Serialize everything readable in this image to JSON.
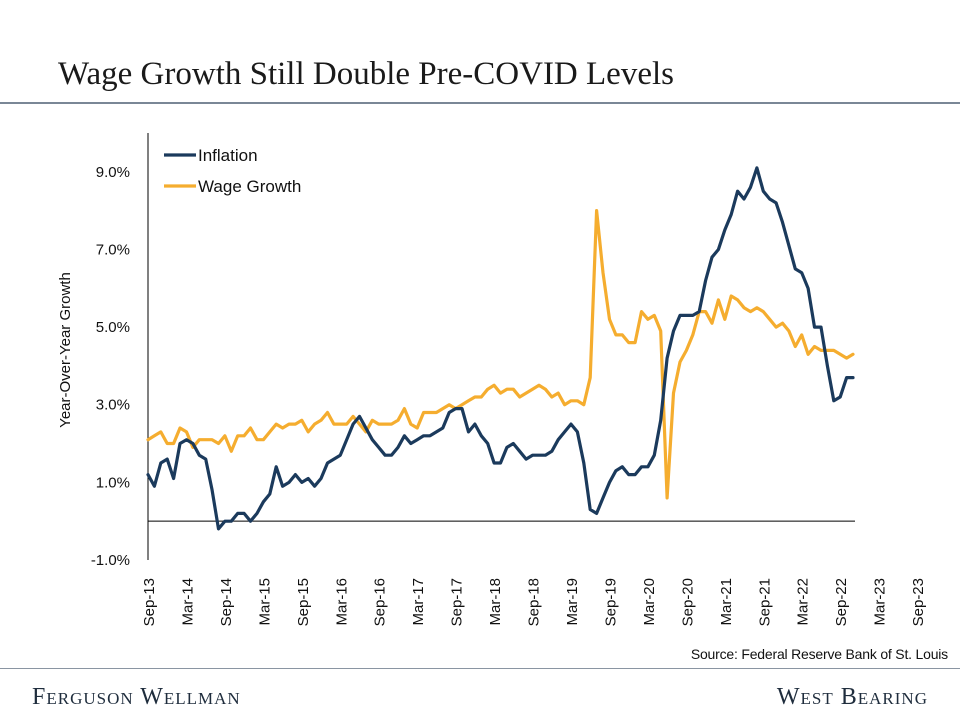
{
  "header": {
    "title": "Wage Growth Still Double Pre-COVID Levels"
  },
  "footer": {
    "source": "Source: Federal Reserve Bank of St. Louis",
    "brand_left": "Ferguson Wellman",
    "brand_right": "West Bearing"
  },
  "chart_data": {
    "type": "line",
    "title": "",
    "xlabel": "",
    "ylabel": "Year-Over-Year Growth",
    "x_tick_labels": [
      "Sep-13",
      "Mar-14",
      "Sep-14",
      "Mar-15",
      "Sep-15",
      "Mar-16",
      "Sep-16",
      "Mar-17",
      "Sep-17",
      "Mar-18",
      "Sep-18",
      "Mar-19",
      "Sep-19",
      "Mar-20",
      "Sep-20",
      "Mar-21",
      "Sep-21",
      "Mar-22",
      "Sep-22",
      "Mar-23",
      "Sep-23"
    ],
    "y_tick_labels": [
      "9.0%",
      "7.0%",
      "5.0%",
      "3.0%",
      "1.0%",
      "-1.0%"
    ],
    "y_ticks": [
      9,
      7,
      5,
      3,
      1,
      -1
    ],
    "ylim": [
      -1,
      10
    ],
    "legend_position": "top-left",
    "grid": false,
    "series": [
      {
        "name": "Inflation",
        "color": "#1b3a5c",
        "values": [
          1.2,
          0.9,
          1.5,
          1.6,
          1.1,
          2.0,
          2.1,
          2.0,
          1.7,
          1.6,
          0.8,
          -0.2,
          0.0,
          0.0,
          0.2,
          0.2,
          0.0,
          0.2,
          0.5,
          0.7,
          1.4,
          0.9,
          1.0,
          1.2,
          1.0,
          1.1,
          0.9,
          1.1,
          1.5,
          1.6,
          1.7,
          2.1,
          2.5,
          2.7,
          2.4,
          2.1,
          1.9,
          1.7,
          1.7,
          1.9,
          2.2,
          2.0,
          2.1,
          2.2,
          2.2,
          2.3,
          2.4,
          2.8,
          2.9,
          2.9,
          2.3,
          2.5,
          2.2,
          2.0,
          1.5,
          1.5,
          1.9,
          2.0,
          1.8,
          1.6,
          1.7,
          1.7,
          1.7,
          1.8,
          2.1,
          2.3,
          2.5,
          2.3,
          1.5,
          0.3,
          0.2,
          0.6,
          1.0,
          1.3,
          1.4,
          1.2,
          1.2,
          1.4,
          1.4,
          1.7,
          2.6,
          4.2,
          4.9,
          5.3,
          5.3,
          5.3,
          5.4,
          6.2,
          6.8,
          7.0,
          7.5,
          7.9,
          8.5,
          8.3,
          8.6,
          9.1,
          8.5,
          8.3,
          8.2,
          7.7,
          7.1,
          6.5,
          6.4,
          6.0,
          5.0,
          5.0,
          4.0,
          3.1,
          3.2,
          3.7,
          3.7
        ]
      },
      {
        "name": "Wage Growth",
        "color": "#f5ad2f",
        "values": [
          2.1,
          2.2,
          2.3,
          2.0,
          2.0,
          2.4,
          2.3,
          1.9,
          2.1,
          2.1,
          2.1,
          2.0,
          2.2,
          1.8,
          2.2,
          2.2,
          2.4,
          2.1,
          2.1,
          2.3,
          2.5,
          2.4,
          2.5,
          2.5,
          2.6,
          2.3,
          2.5,
          2.6,
          2.8,
          2.5,
          2.5,
          2.5,
          2.7,
          2.5,
          2.3,
          2.6,
          2.5,
          2.5,
          2.5,
          2.6,
          2.9,
          2.5,
          2.4,
          2.8,
          2.8,
          2.8,
          2.9,
          3.0,
          2.9,
          3.0,
          3.1,
          3.2,
          3.2,
          3.4,
          3.5,
          3.3,
          3.4,
          3.4,
          3.2,
          3.3,
          3.4,
          3.5,
          3.4,
          3.2,
          3.3,
          3.0,
          3.1,
          3.1,
          3.0,
          3.7,
          8.0,
          6.4,
          5.2,
          4.8,
          4.8,
          4.6,
          4.6,
          5.4,
          5.2,
          5.3,
          4.9,
          0.6,
          3.3,
          4.1,
          4.4,
          4.8,
          5.4,
          5.4,
          5.1,
          5.7,
          5.2,
          5.8,
          5.7,
          5.5,
          5.4,
          5.5,
          5.4,
          5.2,
          5.0,
          5.1,
          4.9,
          4.5,
          4.8,
          4.3,
          4.5,
          4.4,
          4.4,
          4.4,
          4.3,
          4.2,
          4.3
        ]
      }
    ]
  }
}
